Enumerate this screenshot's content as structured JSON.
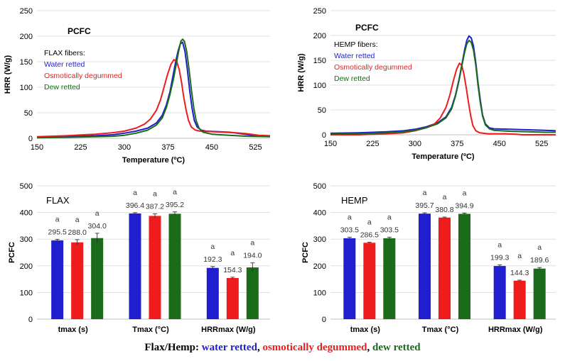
{
  "colors": {
    "water": "#1f1fd0",
    "osmotic": "#ee1c1c",
    "dew": "#1a6b1a",
    "grid": "#d9d9d9",
    "axis": "#000000"
  },
  "caption": {
    "prefix": "Flax/Hemp: ",
    "water": "water retted",
    "sep1": ", ",
    "osmotic": "osmotically degummed",
    "sep2": ", ",
    "dew": "dew retted"
  },
  "chart_data": [
    {
      "type": "line",
      "id": "flax-line",
      "title": "PCFC",
      "legend_title": "FLAX fibers:",
      "xlabel": "Temperature (ºC)",
      "ylabel": "HRR (W/g)",
      "xlim": [
        150,
        550
      ],
      "ylim": [
        0,
        250
      ],
      "xticks": [
        150,
        225,
        300,
        375,
        450,
        525
      ],
      "yticks": [
        0,
        50,
        100,
        150,
        200,
        250
      ],
      "series": [
        {
          "name": "Water retted",
          "color": "#1f1fd0",
          "points": [
            [
              150,
              2
            ],
            [
              200,
              3
            ],
            [
              250,
              5
            ],
            [
              280,
              7
            ],
            [
              300,
              10
            ],
            [
              320,
              14
            ],
            [
              340,
              20
            ],
            [
              355,
              30
            ],
            [
              365,
              45
            ],
            [
              372,
              65
            ],
            [
              378,
              90
            ],
            [
              383,
              120
            ],
            [
              388,
              150
            ],
            [
              392,
              170
            ],
            [
              396,
              185
            ],
            [
              400,
              188
            ],
            [
              404,
              170
            ],
            [
              408,
              135
            ],
            [
              412,
              95
            ],
            [
              416,
              60
            ],
            [
              420,
              35
            ],
            [
              425,
              22
            ],
            [
              432,
              16
            ],
            [
              440,
              14
            ],
            [
              460,
              13
            ],
            [
              480,
              12
            ],
            [
              500,
              9
            ],
            [
              520,
              6
            ],
            [
              550,
              4
            ]
          ]
        },
        {
          "name": "Osmotically degummed",
          "color": "#ee1c1c",
          "points": [
            [
              150,
              3
            ],
            [
              200,
              5
            ],
            [
              250,
              8
            ],
            [
              280,
              11
            ],
            [
              300,
              14
            ],
            [
              320,
              20
            ],
            [
              335,
              28
            ],
            [
              345,
              38
            ],
            [
              355,
              55
            ],
            [
              362,
              75
            ],
            [
              368,
              100
            ],
            [
              374,
              125
            ],
            [
              380,
              145
            ],
            [
              385,
              154
            ],
            [
              390,
              150
            ],
            [
              394,
              135
            ],
            [
              398,
              110
            ],
            [
              402,
              80
            ],
            [
              406,
              55
            ],
            [
              410,
              35
            ],
            [
              415,
              22
            ],
            [
              422,
              16
            ],
            [
              430,
              14
            ],
            [
              450,
              13
            ],
            [
              470,
              12
            ],
            [
              490,
              11
            ],
            [
              510,
              9
            ],
            [
              530,
              6
            ],
            [
              550,
              5
            ]
          ]
        },
        {
          "name": "Dew retted",
          "color": "#1a6b1a",
          "points": [
            [
              150,
              1
            ],
            [
              200,
              2
            ],
            [
              250,
              3
            ],
            [
              280,
              4
            ],
            [
              300,
              6
            ],
            [
              320,
              10
            ],
            [
              340,
              16
            ],
            [
              355,
              26
            ],
            [
              365,
              40
            ],
            [
              372,
              60
            ],
            [
              378,
              85
            ],
            [
              384,
              115
            ],
            [
              389,
              145
            ],
            [
              393,
              170
            ],
            [
              397,
              190
            ],
            [
              400,
              194
            ],
            [
              403,
              190
            ],
            [
              407,
              170
            ],
            [
              411,
              135
            ],
            [
              415,
              95
            ],
            [
              419,
              60
            ],
            [
              423,
              35
            ],
            [
              428,
              20
            ],
            [
              435,
              12
            ],
            [
              450,
              8
            ],
            [
              480,
              6
            ],
            [
              510,
              4
            ],
            [
              550,
              3
            ]
          ]
        }
      ]
    },
    {
      "type": "line",
      "id": "hemp-line",
      "title": "PCFC",
      "legend_title": "HEMP fibers:",
      "xlabel": "Temperature (ºC)",
      "ylabel": "HRR (W/g)",
      "xlim": [
        150,
        550
      ],
      "ylim": [
        0,
        250
      ],
      "xticks": [
        150,
        225,
        300,
        375,
        450,
        525
      ],
      "yticks": [
        0,
        50,
        100,
        150,
        200,
        250
      ],
      "series": [
        {
          "name": "Water retted",
          "color": "#1f1fd0",
          "points": [
            [
              150,
              3
            ],
            [
              200,
              4
            ],
            [
              250,
              6
            ],
            [
              280,
              8
            ],
            [
              300,
              11
            ],
            [
              320,
              16
            ],
            [
              340,
              24
            ],
            [
              355,
              36
            ],
            [
              365,
              55
            ],
            [
              372,
              80
            ],
            [
              378,
              110
            ],
            [
              383,
              140
            ],
            [
              388,
              170
            ],
            [
              392,
              190
            ],
            [
              396,
              199
            ],
            [
              400,
              195
            ],
            [
              404,
              178
            ],
            [
              408,
              145
            ],
            [
              412,
              105
            ],
            [
              416,
              70
            ],
            [
              420,
              40
            ],
            [
              425,
              22
            ],
            [
              432,
              14
            ],
            [
              440,
              12
            ],
            [
              470,
              11
            ],
            [
              500,
              10
            ],
            [
              530,
              9
            ],
            [
              550,
              8
            ]
          ]
        },
        {
          "name": "Osmotically degummed",
          "color": "#ee1c1c",
          "points": [
            [
              150,
              0
            ],
            [
              200,
              0
            ],
            [
              250,
              2
            ],
            [
              280,
              4
            ],
            [
              300,
              8
            ],
            [
              320,
              14
            ],
            [
              335,
              22
            ],
            [
              345,
              34
            ],
            [
              355,
              55
            ],
            [
              362,
              80
            ],
            [
              368,
              108
            ],
            [
              374,
              132
            ],
            [
              379,
              144
            ],
            [
              383,
              140
            ],
            [
              387,
              122
            ],
            [
              391,
              95
            ],
            [
              395,
              65
            ],
            [
              399,
              38
            ],
            [
              403,
              18
            ],
            [
              408,
              8
            ],
            [
              415,
              4
            ],
            [
              430,
              2
            ],
            [
              460,
              2
            ],
            [
              480,
              1
            ],
            [
              490,
              0
            ],
            [
              520,
              0
            ],
            [
              550,
              0
            ]
          ]
        },
        {
          "name": "Dew retted",
          "color": "#1a6b1a",
          "points": [
            [
              150,
              1
            ],
            [
              200,
              2
            ],
            [
              250,
              4
            ],
            [
              280,
              6
            ],
            [
              300,
              9
            ],
            [
              320,
              14
            ],
            [
              340,
              22
            ],
            [
              355,
              34
            ],
            [
              365,
              52
            ],
            [
              372,
              78
            ],
            [
              378,
              108
            ],
            [
              383,
              138
            ],
            [
              388,
              165
            ],
            [
              392,
              183
            ],
            [
              396,
              190
            ],
            [
              400,
              186
            ],
            [
              404,
              170
            ],
            [
              408,
              140
            ],
            [
              412,
              100
            ],
            [
              416,
              65
            ],
            [
              420,
              38
            ],
            [
              425,
              20
            ],
            [
              432,
              12
            ],
            [
              440,
              9
            ],
            [
              470,
              7
            ],
            [
              500,
              6
            ],
            [
              530,
              5
            ],
            [
              550,
              5
            ]
          ]
        }
      ]
    },
    {
      "type": "bar",
      "id": "flax-bar",
      "title": "FLAX",
      "ylabel": "PCFC",
      "ylim": [
        0,
        500
      ],
      "yticks": [
        0,
        100,
        200,
        300,
        400,
        500
      ],
      "categories": [
        "tmax (s)",
        "Tmax (°C)",
        "HRRmax (W/g)"
      ],
      "series": [
        {
          "name": "water retted",
          "color": "#1f1fd0",
          "values": [
            295.5,
            396.4,
            192.3
          ],
          "errors": [
            4,
            3,
            5
          ],
          "labels": [
            "295.5",
            "396.4",
            "192.3"
          ],
          "letters": [
            "a",
            "a",
            "a"
          ]
        },
        {
          "name": "osmotically degummed",
          "color": "#ee1c1c",
          "values": [
            288.0,
            387.2,
            154.3
          ],
          "errors": [
            10,
            8,
            3
          ],
          "labels": [
            "288.0",
            "387.2",
            "154.3"
          ],
          "letters": [
            "a",
            "a",
            "a"
          ]
        },
        {
          "name": "dew retted",
          "color": "#1a6b1a",
          "values": [
            304.0,
            395.2,
            194.0
          ],
          "errors": [
            18,
            7,
            17
          ],
          "labels": [
            "304.0",
            "395.2",
            "194.0"
          ],
          "letters": [
            "a",
            "a",
            "a"
          ]
        }
      ]
    },
    {
      "type": "bar",
      "id": "hemp-bar",
      "title": "HEMP",
      "ylabel": "PCFC",
      "ylim": [
        0,
        500
      ],
      "yticks": [
        0,
        100,
        200,
        300,
        400,
        500
      ],
      "categories": [
        "tmax (s)",
        "Tmax (°C)",
        "HRRmax (W/g)"
      ],
      "series": [
        {
          "name": "water retted",
          "color": "#1f1fd0",
          "values": [
            303.5,
            395.7,
            199.3
          ],
          "errors": [
            4,
            3,
            4
          ],
          "labels": [
            "303.5",
            "395.7",
            "199.3"
          ],
          "letters": [
            "a",
            "a",
            "a"
          ]
        },
        {
          "name": "osmotically degummed",
          "color": "#ee1c1c",
          "values": [
            286.5,
            380.8,
            144.3
          ],
          "errors": [
            2,
            2,
            2
          ],
          "labels": [
            "286.5",
            "380.8",
            "144.3"
          ],
          "letters": [
            "a",
            "a",
            "a"
          ]
        },
        {
          "name": "dew retted",
          "color": "#1a6b1a",
          "values": [
            303.5,
            394.9,
            189.6
          ],
          "errors": [
            4,
            3,
            4
          ],
          "labels": [
            "303.5",
            "394.9",
            "189.6"
          ],
          "letters": [
            "a",
            "a",
            "a"
          ]
        }
      ]
    }
  ]
}
